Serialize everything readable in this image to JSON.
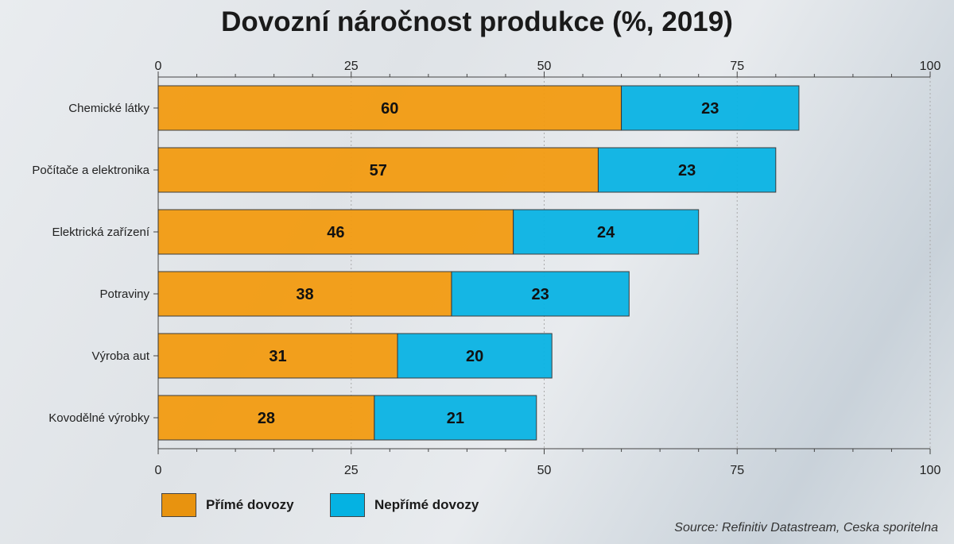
{
  "chart_data": {
    "type": "bar",
    "orientation": "horizontal",
    "stacked": true,
    "title": "Dovozní náročnost produkce (%, 2019)",
    "categories": [
      "Chemické látky",
      "Počítače a elektronika",
      "Elektrická zařízení",
      "Potraviny",
      "Výroba aut",
      "Kovodělné výrobky"
    ],
    "series": [
      {
        "name": "Přímé dovozy",
        "color": "#f39c12",
        "values": [
          60,
          57,
          46,
          38,
          31,
          28
        ]
      },
      {
        "name": "Nepřímé dovozy",
        "color": "#0ab4e4",
        "values": [
          23,
          23,
          24,
          23,
          20,
          21
        ]
      }
    ],
    "xlim": [
      0,
      100
    ],
    "xticks": [
      0,
      25,
      50,
      75,
      100
    ],
    "grid": "vertical dotted",
    "legend": "bottom-left",
    "source": "Source: Refinitiv Datastream, Ceska sporitelna"
  }
}
